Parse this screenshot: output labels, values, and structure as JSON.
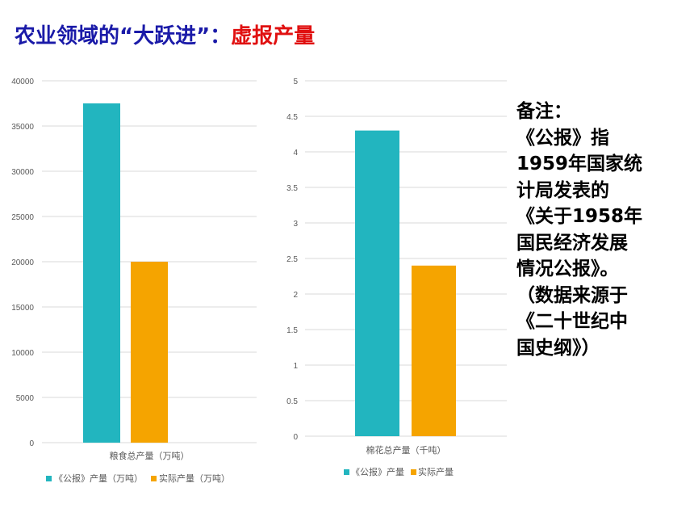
{
  "title": {
    "main": "农业领域的“大跃进”：",
    "highlight": "虚报产量"
  },
  "colors": {
    "title_main": "#1a1aa8",
    "title_highlight": "#e01010",
    "gongbao": "#22b5bf",
    "actual": "#f5a400",
    "grid": "#d9d9d9",
    "axis_text": "#595959"
  },
  "chart_data": [
    {
      "type": "bar",
      "categories": [
        "粮食总产量（万吨）"
      ],
      "series": [
        {
          "name": "《公报》产量（万吨）",
          "values": [
            37500
          ]
        },
        {
          "name": "实际产量（万吨）",
          "values": [
            20000
          ]
        }
      ],
      "yticks": [
        "0",
        "5000",
        "10000",
        "15000",
        "20000",
        "25000",
        "30000",
        "35000",
        "40000"
      ],
      "ylim": [
        0,
        40000
      ],
      "grid": true,
      "legend": "bottom"
    },
    {
      "type": "bar",
      "categories": [
        "棉花总产量（千吨）"
      ],
      "series": [
        {
          "name": "《公报》产量",
          "values": [
            4.3
          ]
        },
        {
          "name": "实际产量",
          "values": [
            2.4
          ]
        }
      ],
      "yticks": [
        "0",
        "0.5",
        "1",
        "1.5",
        "2",
        "2.5",
        "3",
        "3.5",
        "4",
        "4.5",
        "5"
      ],
      "ylim": [
        0,
        5
      ],
      "grid": true,
      "legend": "bottom"
    }
  ],
  "note": {
    "lines": [
      "备注：",
      "《公报》指",
      "1959年国家统",
      "计局发表的",
      "《关于1958年",
      "国民经济发展",
      "情况公报》。",
      "（数据来源于",
      "《二十世纪中",
      "国史纲》）"
    ]
  }
}
